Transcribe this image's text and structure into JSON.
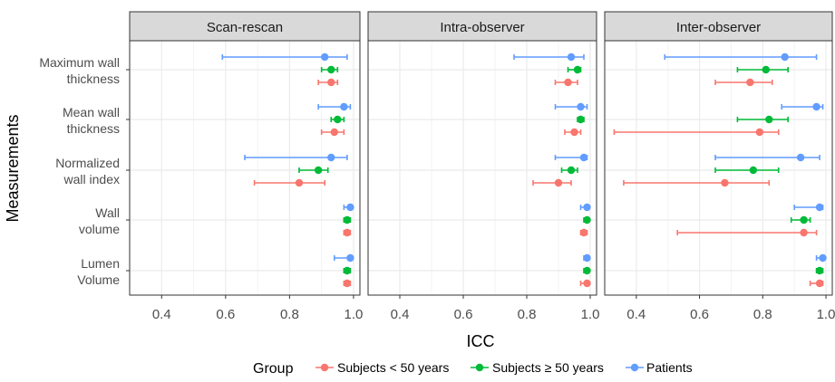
{
  "chart_data": {
    "type": "scatter",
    "subtype": "dot-with-errorbars",
    "facets": [
      "Scan-rescan",
      "Intra-observer",
      "Inter-observer"
    ],
    "categories": [
      [
        "Maximum wall",
        "thickness"
      ],
      [
        "Mean wall",
        "thickness"
      ],
      [
        "Normalized",
        "wall index"
      ],
      [
        "Wall",
        "volume"
      ],
      [
        "Lumen",
        "Volume"
      ]
    ],
    "xlabel": "ICC",
    "ylabel": "Measurements",
    "xlim": [
      0.3,
      1.02
    ],
    "xticks": [
      "0.4",
      "0.6",
      "0.8",
      "1.0"
    ],
    "xtick_values": [
      0.4,
      0.6,
      0.8,
      1.0
    ],
    "grid": true,
    "legend": {
      "position": "bottom",
      "title": "Group",
      "entries": [
        "Subjects < 50 years",
        "Subjects ≥ 50 years",
        "Patients"
      ]
    },
    "colors": {
      "Subjects < 50 years": "#F8766D",
      "Subjects ≥ 50 years": "#00BA38",
      "Patients": "#619CFF",
      "panel_bg": "#ffffff",
      "strip_bg": "#d9d9d9",
      "grid": "#ebebeb"
    },
    "series": [
      {
        "name": "Subjects < 50 years",
        "data": [
          [
            [
              0.93,
              0.89,
              0.95
            ],
            [
              0.94,
              0.9,
              0.97
            ],
            [
              0.83,
              0.69,
              0.91
            ],
            [
              0.98,
              0.97,
              0.99
            ],
            [
              0.98,
              0.97,
              0.99
            ]
          ],
          [
            [
              0.93,
              0.89,
              0.96
            ],
            [
              0.95,
              0.92,
              0.97
            ],
            [
              0.9,
              0.82,
              0.94
            ],
            [
              0.98,
              0.97,
              0.99
            ],
            [
              0.99,
              0.97,
              0.995
            ]
          ],
          [
            [
              0.76,
              0.65,
              0.83
            ],
            [
              0.79,
              0.33,
              0.85
            ],
            [
              0.68,
              0.36,
              0.82
            ],
            [
              0.93,
              0.53,
              0.97
            ],
            [
              0.98,
              0.95,
              0.99
            ]
          ]
        ]
      },
      {
        "name": "Subjects ≥ 50 years",
        "data": [
          [
            [
              0.93,
              0.9,
              0.95
            ],
            [
              0.95,
              0.93,
              0.97
            ],
            [
              0.89,
              0.83,
              0.92
            ],
            [
              0.98,
              0.97,
              0.99
            ],
            [
              0.98,
              0.97,
              0.99
            ]
          ],
          [
            [
              0.96,
              0.93,
              0.97
            ],
            [
              0.97,
              0.96,
              0.98
            ],
            [
              0.94,
              0.91,
              0.96
            ],
            [
              0.99,
              0.98,
              0.995
            ],
            [
              0.99,
              0.98,
              0.995
            ]
          ],
          [
            [
              0.81,
              0.72,
              0.88
            ],
            [
              0.82,
              0.72,
              0.88
            ],
            [
              0.77,
              0.65,
              0.85
            ],
            [
              0.93,
              0.89,
              0.95
            ],
            [
              0.98,
              0.97,
              0.99
            ]
          ]
        ]
      },
      {
        "name": "Patients",
        "data": [
          [
            [
              0.91,
              0.59,
              0.98
            ],
            [
              0.97,
              0.89,
              0.99
            ],
            [
              0.93,
              0.66,
              0.98
            ],
            [
              0.99,
              0.97,
              0.995
            ],
            [
              0.99,
              0.94,
              0.995
            ]
          ],
          [
            [
              0.94,
              0.76,
              0.98
            ],
            [
              0.97,
              0.89,
              0.99
            ],
            [
              0.98,
              0.89,
              0.99
            ],
            [
              0.99,
              0.97,
              0.995
            ],
            [
              0.99,
              0.98,
              0.995
            ]
          ],
          [
            [
              0.87,
              0.49,
              0.97
            ],
            [
              0.97,
              0.86,
              0.99
            ],
            [
              0.92,
              0.65,
              0.98
            ],
            [
              0.98,
              0.9,
              0.99
            ],
            [
              0.99,
              0.97,
              0.995
            ]
          ]
        ]
      }
    ]
  }
}
